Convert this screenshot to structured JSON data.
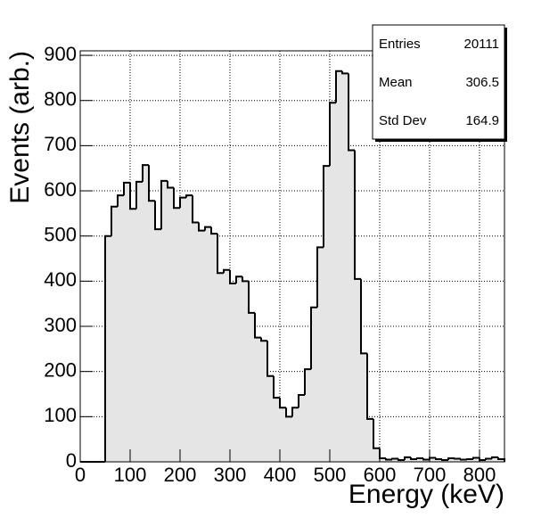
{
  "chart_data": {
    "type": "histogram",
    "xlabel": "Energy (keV)",
    "ylabel": "Events (arb.)",
    "bins": [
      0,
      12.5,
      25,
      37.5,
      50,
      62.5,
      75,
      87.5,
      100,
      112.5,
      125,
      137.5,
      150,
      162.5,
      175,
      187.5,
      200,
      212.5,
      225,
      237.5,
      250,
      262.5,
      275,
      287.5,
      300,
      312.5,
      325,
      337.5,
      350,
      362.5,
      375,
      387.5,
      400,
      412.5,
      425,
      437.5,
      450,
      462.5,
      475,
      487.5,
      500,
      512.5,
      525,
      537.5,
      550,
      562.5,
      575,
      587.5,
      600,
      612.5,
      625,
      637.5,
      650,
      662.5,
      675,
      687.5,
      700,
      712.5,
      725,
      737.5,
      750,
      762.5,
      775,
      787.5,
      800,
      812.5,
      825,
      837.5,
      850
    ],
    "values": [
      0,
      0,
      0,
      0,
      500,
      565,
      590,
      618,
      560,
      620,
      657,
      578,
      515,
      622,
      607,
      562,
      585,
      590,
      530,
      512,
      520,
      505,
      418,
      425,
      395,
      410,
      400,
      330,
      275,
      268,
      190,
      142,
      120,
      100,
      120,
      148,
      205,
      342,
      475,
      655,
      795,
      865,
      860,
      690,
      405,
      240,
      95,
      30,
      8,
      5,
      7,
      4,
      10,
      6,
      8,
      5,
      9,
      6,
      4,
      8,
      7,
      5,
      6,
      9,
      4,
      7,
      10,
      6
    ],
    "color": "#e5e5e5",
    "line_color": "#000000",
    "xlim": [
      0,
      850
    ],
    "ylim": [
      0,
      910
    ],
    "xticks": [
      0,
      100,
      200,
      300,
      400,
      500,
      600,
      700,
      800
    ],
    "yticks": [
      0,
      100,
      200,
      300,
      400,
      500,
      600,
      700,
      800,
      900
    ],
    "grid": true,
    "stats": {
      "labels": [
        "Entries",
        "Mean",
        "Std Dev"
      ],
      "values": [
        20111,
        306.5,
        164.9
      ]
    }
  }
}
